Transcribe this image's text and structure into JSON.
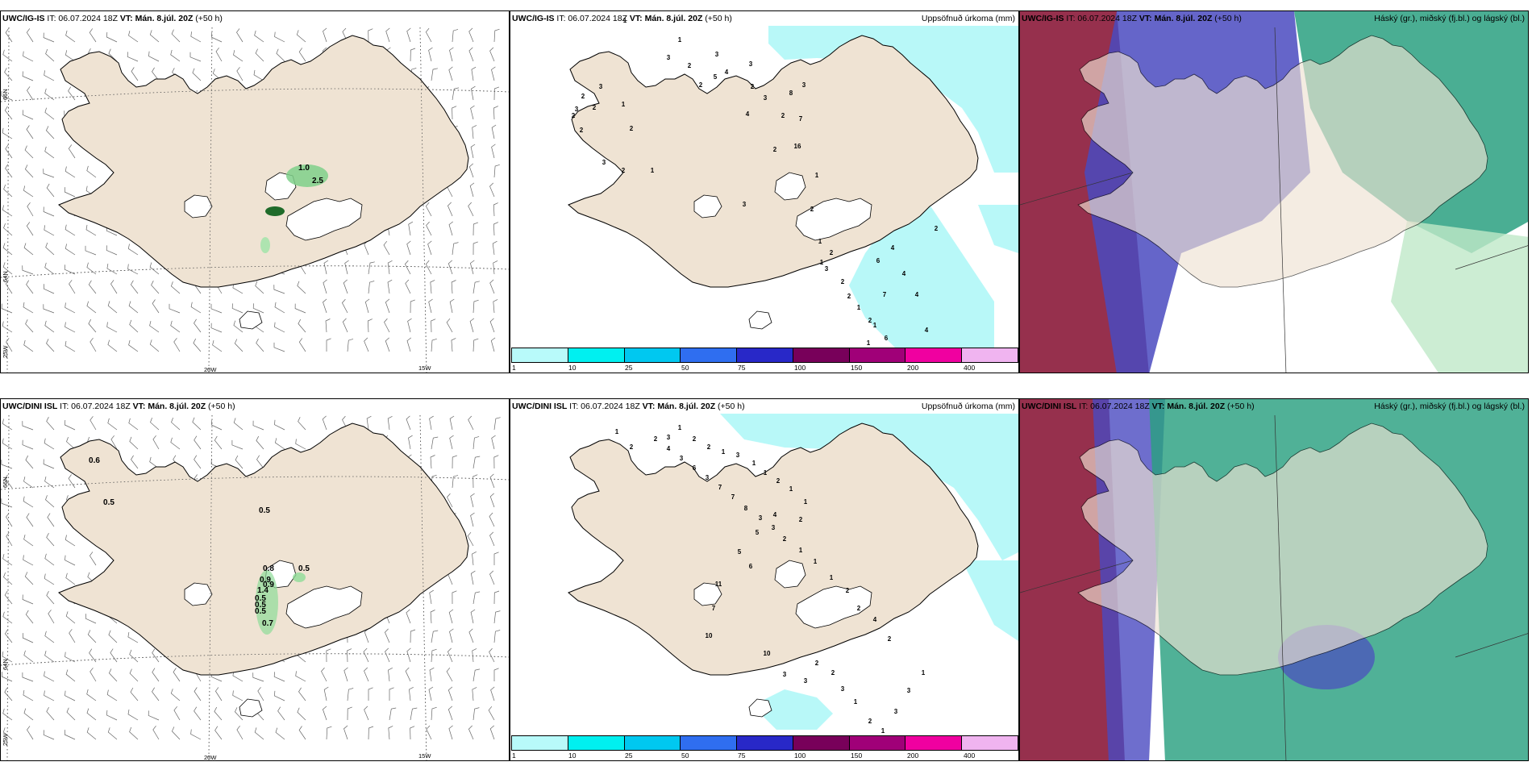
{
  "rows": [
    {
      "model": "UWC/IG-IS",
      "init": "IT: 06.07.2024 18Z",
      "vt_label": "VT:",
      "vt_value": "Mán. 8.júl. 20Z",
      "lead": "(+50 h)",
      "wind_labels": [
        "1.0",
        "2.5"
      ],
      "precip_labels": [
        "3",
        "2",
        "2",
        "3",
        "2",
        "2",
        "1",
        "2",
        "1",
        "2",
        "3",
        "2",
        "1",
        "1",
        "3",
        "2",
        "3",
        "5",
        "4",
        "3",
        "2",
        "4",
        "3",
        "3",
        "2",
        "8",
        "7",
        "16",
        "2",
        "3",
        "1",
        "2",
        "1",
        "2",
        "3",
        "2",
        "1",
        "2",
        "1",
        "2",
        "1",
        "1",
        "6",
        "7",
        "6",
        "4",
        "4",
        "4",
        "4",
        "2"
      ]
    },
    {
      "model": "UWC/DINI ISL",
      "init": "IT: 06.07.2024 18Z",
      "vt_label": "VT:",
      "vt_value": "Mán. 8.júl. 20Z",
      "lead": "(+50 h)",
      "wind_labels": [
        "0.6",
        "0.5",
        "0.5",
        "0.8",
        "0.5",
        "0.9",
        "0.9",
        "1.4",
        "0.5",
        "0.5",
        "0.5",
        "0.7"
      ],
      "precip_labels": [
        "1",
        "2",
        "3",
        "1",
        "2",
        "2",
        "1",
        "3",
        "1",
        "1",
        "2",
        "1",
        "1",
        "2",
        "4",
        "5",
        "5",
        "6",
        "11",
        "7",
        "10",
        "10",
        "3",
        "3",
        "2",
        "2",
        "3",
        "1",
        "2",
        "1",
        "3",
        "3",
        "1",
        "2",
        "4",
        "2",
        "2",
        "1",
        "1",
        "1",
        "2",
        "3",
        "3",
        "8",
        "7",
        "7",
        "3",
        "6",
        "3",
        "4",
        "2"
      ]
    }
  ],
  "coords": {
    "lat_top": "66N",
    "lat_bottom": "64N",
    "lon_left": "25W",
    "lon_mid": "20W",
    "lon_right": "15W"
  },
  "precip_title": "Uppsöfnuð úrkoma (mm)",
  "cloud_title": "Háský (gr.), miðský (fj.bl.) og lágský (bl.)",
  "colorbar": {
    "ticks": [
      "1",
      "10",
      "25",
      "50",
      "75",
      "100",
      "150",
      "200",
      "400"
    ],
    "colors": [
      "#b8fafa",
      "#00f0f0",
      "#00c8f0",
      "#2f6ef0",
      "#2828c8",
      "#78005a",
      "#a00078",
      "#f000a0",
      "#f0b4f0"
    ]
  },
  "colors": {
    "land": "#efe3d3",
    "sea": "#ffffff",
    "precip_light": "#b8f8f8",
    "cloud_high": "#8b1a3a",
    "cloud_mid": "#4a4ac0",
    "cloud_low": "#2aa080"
  }
}
